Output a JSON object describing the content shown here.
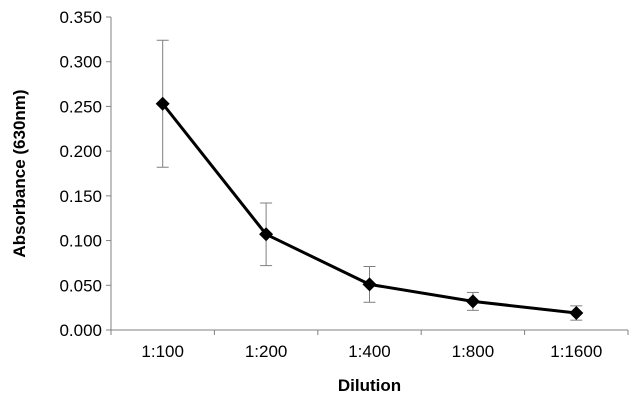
{
  "chart_data": {
    "type": "line",
    "title": "",
    "xlabel": "Dilution",
    "ylabel": "Absorbance (630nm)",
    "categories": [
      "1:100",
      "1:200",
      "1:400",
      "1:800",
      "1:1600"
    ],
    "series": [
      {
        "values": [
          0.253,
          0.107,
          0.051,
          0.032,
          0.019
        ],
        "error": [
          0.071,
          0.035,
          0.02,
          0.01,
          0.008
        ],
        "marker": "diamond",
        "color": "#000000"
      }
    ],
    "ylim": [
      0,
      0.35
    ],
    "yticks": [
      "0.000",
      "0.050",
      "0.100",
      "0.150",
      "0.200",
      "0.250",
      "0.300",
      "0.350"
    ],
    "ytick_values": [
      0,
      0.05,
      0.1,
      0.15,
      0.2,
      0.25,
      0.3,
      0.35
    ],
    "grid": false,
    "legend": "none"
  }
}
